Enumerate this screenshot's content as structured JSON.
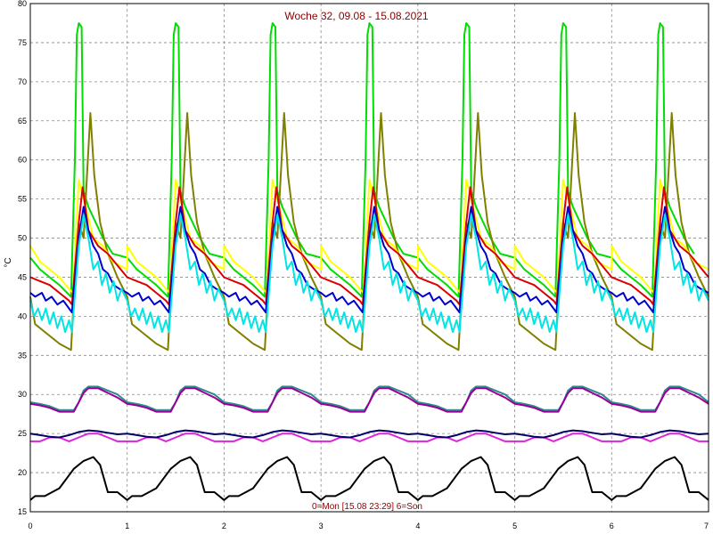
{
  "chart_data": {
    "type": "line",
    "title": "Woche 32, 09.08 - 15.08.2021",
    "footer": "0=Mon [15.08 23:29] 6=Son",
    "xlabel": "",
    "ylabel": "°C",
    "xlim": [
      0,
      7
    ],
    "ylim": [
      15,
      80
    ],
    "x_ticks": [
      "0",
      "1",
      "2",
      "3",
      "4",
      "5",
      "6",
      "7"
    ],
    "y_ticks": [
      "15",
      "20",
      "25",
      "30",
      "35",
      "40",
      "45",
      "50",
      "55",
      "60",
      "65",
      "70",
      "75",
      "80"
    ],
    "grid": true,
    "period_days": 1,
    "series": [
      {
        "color": "#00dd00",
        "points": [
          [
            0,
            47.5
          ],
          [
            0.1,
            46
          ],
          [
            0.2,
            45
          ],
          [
            0.3,
            44
          ],
          [
            0.38,
            43
          ],
          [
            0.42,
            42.5
          ],
          [
            0.46,
            60
          ],
          [
            0.48,
            76
          ],
          [
            0.5,
            77.5
          ],
          [
            0.53,
            77
          ],
          [
            0.55,
            56
          ],
          [
            0.6,
            54
          ],
          [
            0.75,
            50
          ],
          [
            0.85,
            48
          ]
        ]
      },
      {
        "color": "#808000",
        "points": [
          [
            0,
            42.5
          ],
          [
            0.05,
            39
          ],
          [
            0.15,
            38
          ],
          [
            0.3,
            36.5
          ],
          [
            0.42,
            35.7
          ],
          [
            0.46,
            45
          ],
          [
            0.5,
            52
          ],
          [
            0.55,
            50
          ],
          [
            0.62,
            66
          ],
          [
            0.66,
            58
          ],
          [
            0.72,
            52
          ],
          [
            0.8,
            48
          ],
          [
            0.9,
            45
          ],
          [
            1,
            42.5
          ]
        ]
      },
      {
        "color": "#ffff00",
        "points": [
          [
            0,
            49
          ],
          [
            0.1,
            47
          ],
          [
            0.2,
            46
          ],
          [
            0.3,
            45
          ],
          [
            0.4,
            43.5
          ],
          [
            0.44,
            43
          ],
          [
            0.5,
            57.5
          ],
          [
            0.55,
            55
          ],
          [
            0.65,
            50
          ],
          [
            0.75,
            49
          ],
          [
            0.85,
            47
          ],
          [
            1,
            46
          ]
        ]
      },
      {
        "color": "#dd0000",
        "points": [
          [
            0,
            45
          ],
          [
            0.1,
            44.5
          ],
          [
            0.2,
            44
          ],
          [
            0.3,
            43
          ],
          [
            0.4,
            42
          ],
          [
            0.43,
            41.5
          ],
          [
            0.5,
            52
          ],
          [
            0.54,
            56.5
          ],
          [
            0.6,
            51
          ],
          [
            0.7,
            49
          ],
          [
            0.8,
            48
          ],
          [
            0.9,
            46.5
          ],
          [
            1,
            45
          ]
        ]
      },
      {
        "color": "#0000cc",
        "points": [
          [
            0,
            43
          ],
          [
            0.05,
            42.5
          ],
          [
            0.12,
            43
          ],
          [
            0.16,
            42
          ],
          [
            0.22,
            42.5
          ],
          [
            0.28,
            41.5
          ],
          [
            0.34,
            42
          ],
          [
            0.4,
            41
          ],
          [
            0.43,
            40.5
          ],
          [
            0.5,
            50
          ],
          [
            0.55,
            54
          ],
          [
            0.6,
            51
          ],
          [
            0.65,
            49
          ],
          [
            0.7,
            48
          ],
          [
            0.75,
            46
          ],
          [
            0.8,
            45.5
          ],
          [
            0.86,
            44
          ],
          [
            0.92,
            43.5
          ],
          [
            1,
            43
          ]
        ]
      },
      {
        "color": "#00e5e5",
        "points": [
          [
            0,
            42
          ],
          [
            0.04,
            40
          ],
          [
            0.08,
            41
          ],
          [
            0.12,
            39.5
          ],
          [
            0.16,
            41
          ],
          [
            0.2,
            39
          ],
          [
            0.24,
            40.5
          ],
          [
            0.28,
            38.5
          ],
          [
            0.32,
            40
          ],
          [
            0.36,
            38
          ],
          [
            0.4,
            39.5
          ],
          [
            0.43,
            38
          ],
          [
            0.5,
            49
          ],
          [
            0.55,
            53
          ],
          [
            0.6,
            50
          ],
          [
            0.65,
            46
          ],
          [
            0.7,
            47
          ],
          [
            0.74,
            44
          ],
          [
            0.78,
            45.5
          ],
          [
            0.82,
            43
          ],
          [
            0.86,
            44.5
          ],
          [
            0.9,
            42
          ],
          [
            0.94,
            43.5
          ],
          [
            1,
            42
          ]
        ]
      },
      {
        "color": "#2e8b8b",
        "points": [
          [
            0,
            29
          ],
          [
            0.1,
            28.8
          ],
          [
            0.2,
            28.5
          ],
          [
            0.3,
            28
          ],
          [
            0.45,
            28
          ],
          [
            0.5,
            29
          ],
          [
            0.55,
            30.5
          ],
          [
            0.6,
            31
          ],
          [
            0.7,
            31
          ],
          [
            0.8,
            30.5
          ],
          [
            0.9,
            30
          ],
          [
            1,
            29
          ]
        ]
      },
      {
        "color": "#990099",
        "points": [
          [
            0,
            28.8
          ],
          [
            0.1,
            28.6
          ],
          [
            0.2,
            28.3
          ],
          [
            0.3,
            27.8
          ],
          [
            0.45,
            27.8
          ],
          [
            0.5,
            29
          ],
          [
            0.55,
            30.2
          ],
          [
            0.6,
            30.8
          ],
          [
            0.7,
            30.8
          ],
          [
            0.8,
            30.2
          ],
          [
            0.9,
            29.6
          ],
          [
            1,
            28.8
          ]
        ]
      },
      {
        "color": "#dd22dd",
        "points": [
          [
            0,
            24
          ],
          [
            0.1,
            24
          ],
          [
            0.2,
            24.5
          ],
          [
            0.3,
            24.5
          ],
          [
            0.4,
            24
          ],
          [
            0.5,
            24.5
          ],
          [
            0.6,
            25
          ],
          [
            0.7,
            25
          ],
          [
            0.8,
            24.5
          ],
          [
            0.9,
            24
          ],
          [
            1,
            24
          ]
        ]
      },
      {
        "color": "#000066",
        "points": [
          [
            0,
            25
          ],
          [
            0.1,
            24.8
          ],
          [
            0.2,
            24.6
          ],
          [
            0.3,
            24.5
          ],
          [
            0.4,
            24.8
          ],
          [
            0.5,
            25.2
          ],
          [
            0.6,
            25.4
          ],
          [
            0.7,
            25.3
          ],
          [
            0.8,
            25.1
          ],
          [
            0.9,
            24.9
          ],
          [
            1,
            25
          ]
        ]
      },
      {
        "color": "#000000",
        "points": [
          [
            0,
            16.5
          ],
          [
            0.05,
            17
          ],
          [
            0.15,
            17
          ],
          [
            0.3,
            18
          ],
          [
            0.45,
            20.5
          ],
          [
            0.55,
            21.5
          ],
          [
            0.65,
            22
          ],
          [
            0.72,
            21
          ],
          [
            0.8,
            17.5
          ],
          [
            0.9,
            17.5
          ],
          [
            1,
            16.5
          ]
        ]
      }
    ]
  }
}
